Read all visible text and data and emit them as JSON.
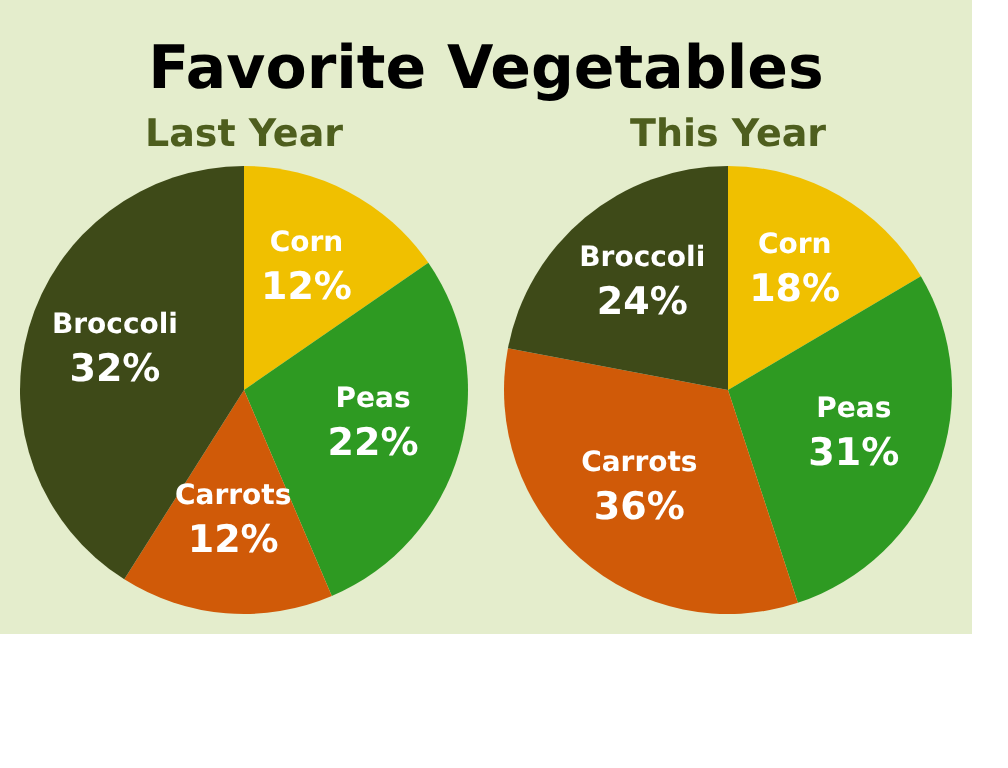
{
  "chart_data": [
    {
      "type": "pie",
      "title": "Favorite Vegetables",
      "subtitle": "Last Year",
      "categories": [
        "Corn",
        "Peas",
        "Carrots",
        "Broccoli"
      ],
      "values": [
        12,
        22,
        12,
        32
      ],
      "colors": [
        "#f0c000",
        "#2e9a22",
        "#d05a08",
        "#3e4a18"
      ],
      "value_labels": [
        "12%",
        "22%",
        "12%",
        "32%"
      ],
      "legend": false
    },
    {
      "type": "pie",
      "subtitle": "This Year",
      "categories": [
        "Corn",
        "Peas",
        "Carrots",
        "Broccoli"
      ],
      "values": [
        18,
        31,
        36,
        24
      ],
      "colors": [
        "#f0c000",
        "#2e9a22",
        "#d05a08",
        "#3e4a18"
      ],
      "value_labels": [
        "18%",
        "31%",
        "36%",
        "24%"
      ],
      "legend": false
    }
  ]
}
